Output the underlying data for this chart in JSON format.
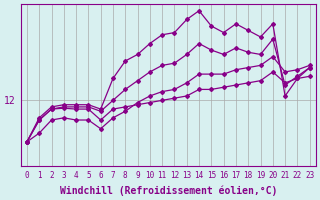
{
  "xlabel": "Windchill (Refroidissement éolien,°C)",
  "ylabel": "",
  "background_color": "#d8f0f0",
  "line_color": "#880088",
  "grid_color": "#aaaaaa",
  "ytick_labels": [
    "12"
  ],
  "ytick_values": [
    12
  ],
  "xlim": [
    -0.5,
    23.5
  ],
  "ylim": [
    10.5,
    14.2
  ],
  "series": [
    {
      "x": [
        0,
        1,
        2,
        3,
        4,
        5,
        6,
        7,
        8,
        9,
        10,
        11,
        12,
        13,
        14,
        15,
        16,
        17,
        18,
        19,
        20,
        21,
        22,
        23
      ],
      "y": [
        11.05,
        11.6,
        11.85,
        11.9,
        11.9,
        11.9,
        11.8,
        12.5,
        12.9,
        13.05,
        13.3,
        13.5,
        13.55,
        13.85,
        14.05,
        13.7,
        13.55,
        13.75,
        13.6,
        13.45,
        13.75,
        12.1,
        12.5,
        12.75
      ]
    },
    {
      "x": [
        0,
        1,
        2,
        3,
        4,
        5,
        6,
        7,
        8,
        9,
        10,
        11,
        12,
        13,
        14,
        15,
        16,
        17,
        18,
        19,
        20,
        21,
        22,
        23
      ],
      "y": [
        11.05,
        11.55,
        11.8,
        11.85,
        11.85,
        11.85,
        11.75,
        12.0,
        12.25,
        12.45,
        12.65,
        12.8,
        12.85,
        13.05,
        13.3,
        13.15,
        13.05,
        13.2,
        13.1,
        13.05,
        13.4,
        12.35,
        12.55,
        12.75
      ]
    },
    {
      "x": [
        0,
        1,
        2,
        3,
        4,
        5,
        6,
        7,
        8,
        9,
        10,
        11,
        12,
        13,
        14,
        15,
        16,
        17,
        18,
        19,
        20,
        21,
        22,
        23
      ],
      "y": [
        11.05,
        11.25,
        11.55,
        11.6,
        11.55,
        11.55,
        11.35,
        11.6,
        11.75,
        11.95,
        12.1,
        12.2,
        12.25,
        12.4,
        12.6,
        12.6,
        12.6,
        12.7,
        12.75,
        12.8,
        13.0,
        12.65,
        12.7,
        12.8
      ]
    },
    {
      "x": [
        0,
        1,
        2,
        3,
        4,
        5,
        6,
        7,
        8,
        9,
        10,
        11,
        12,
        13,
        14,
        15,
        16,
        17,
        18,
        19,
        20,
        21,
        22,
        23
      ],
      "y": [
        11.05,
        11.55,
        11.8,
        11.82,
        11.8,
        11.8,
        11.55,
        11.8,
        11.85,
        11.9,
        11.95,
        12.0,
        12.05,
        12.1,
        12.25,
        12.25,
        12.3,
        12.35,
        12.4,
        12.45,
        12.65,
        12.4,
        12.5,
        12.55
      ]
    }
  ],
  "xtick_fontsize": 5.5,
  "ytick_fontsize": 7,
  "xlabel_fontsize": 7,
  "marker": "D",
  "markersize": 2.0,
  "linewidth": 0.9
}
